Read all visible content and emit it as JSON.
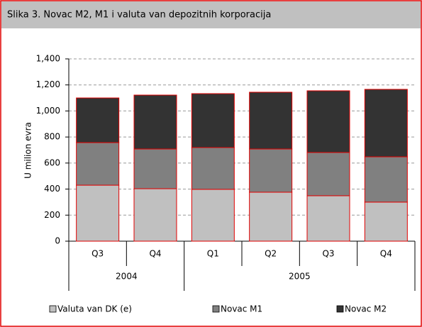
{
  "chart_data": {
    "type": "stacked_bar",
    "title": "Slika 3. Novac M2, M1  i valuta van depozitnih korporacija",
    "ylabel": "U milion evra",
    "groups": [
      {
        "name": "2004",
        "categories": [
          "Q3",
          "Q4"
        ]
      },
      {
        "name": "2005",
        "categories": [
          "Q1",
          "Q2",
          "Q3",
          "Q4"
        ]
      }
    ],
    "series": [
      {
        "name": "Valuta van DK (e)",
        "color": "#c0c0c0",
        "values": [
          430,
          403,
          398,
          376,
          349,
          300
        ]
      },
      {
        "name": "Novac M1",
        "color": "#808080",
        "values": [
          327,
          305,
          321,
          332,
          332,
          348
        ]
      },
      {
        "name": "Novac M2",
        "color": "#333333",
        "values": [
          343,
          414,
          414,
          436,
          474,
          518
        ]
      }
    ],
    "ylim": [
      0,
      1400
    ],
    "yticks": [
      0,
      200,
      400,
      600,
      800,
      {
        "value": 1000,
        "label": "1,000"
      },
      {
        "value": 1200,
        "label": "1,200"
      },
      {
        "value": 1400,
        "label": "1,400"
      }
    ],
    "grid": true,
    "legend": "bottom"
  }
}
